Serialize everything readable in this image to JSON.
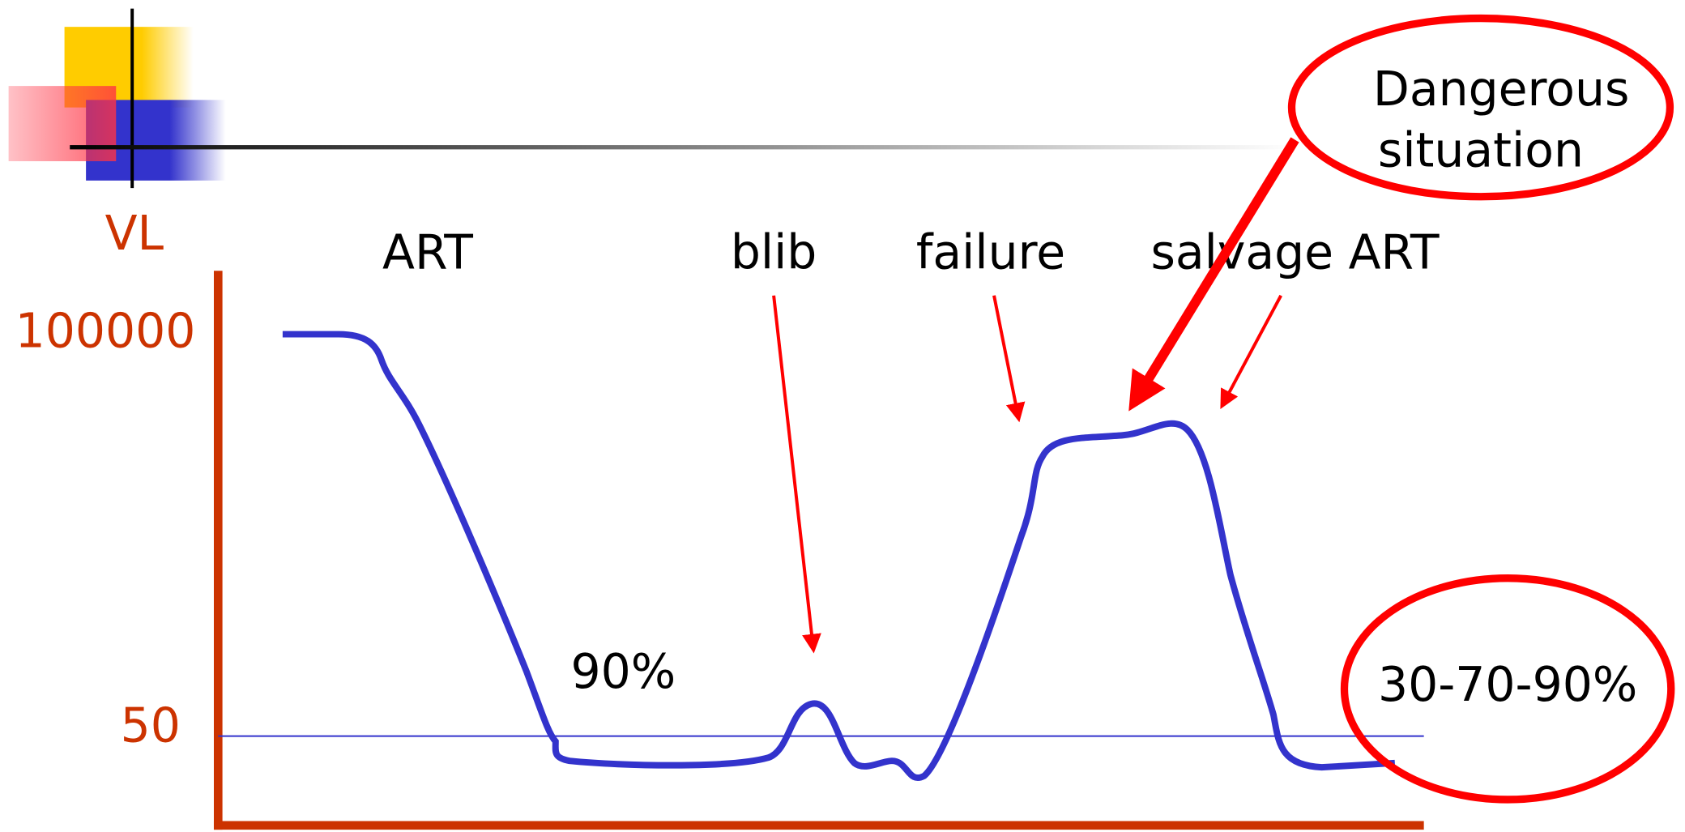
{
  "y_axis": {
    "label": "VL",
    "ticks": [
      "100000",
      "50"
    ]
  },
  "phases": [
    "ART",
    "blib",
    "failure",
    "salvage ART"
  ],
  "annotations": {
    "suppression": "90%",
    "warning": [
      "Dangerous",
      "situation"
    ],
    "response": "30-70-90%"
  }
}
